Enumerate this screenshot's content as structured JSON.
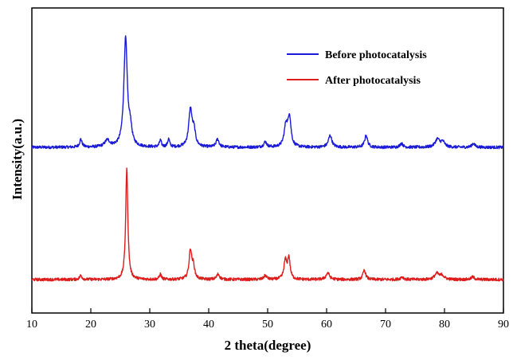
{
  "chart_data": {
    "type": "line",
    "xlabel": "2 theta(degree)",
    "ylabel": "Intensity(a.u.)",
    "xlim": [
      10,
      90
    ],
    "x_ticks": [
      10,
      20,
      30,
      40,
      50,
      60,
      70,
      80,
      90
    ],
    "y_ticks_shown": false,
    "grid": false,
    "legend_position": "top-right",
    "series": [
      {
        "name": "Before photocatalysis",
        "color": "#1a1ad6",
        "baseline": 0,
        "peaks": [
          {
            "x": 18.3,
            "h": 0.6,
            "w": 0.25
          },
          {
            "x": 22.8,
            "h": 0.5,
            "w": 0.5
          },
          {
            "x": 25.9,
            "h": 8.2,
            "w": 0.35
          },
          {
            "x": 26.7,
            "h": 1.2,
            "w": 0.3
          },
          {
            "x": 31.8,
            "h": 0.5,
            "w": 0.2
          },
          {
            "x": 33.2,
            "h": 0.6,
            "w": 0.2
          },
          {
            "x": 36.9,
            "h": 2.8,
            "w": 0.35
          },
          {
            "x": 37.5,
            "h": 1.1,
            "w": 0.3
          },
          {
            "x": 41.5,
            "h": 0.6,
            "w": 0.3
          },
          {
            "x": 49.6,
            "h": 0.4,
            "w": 0.3
          },
          {
            "x": 53.1,
            "h": 1.6,
            "w": 0.35
          },
          {
            "x": 53.7,
            "h": 2.2,
            "w": 0.3
          },
          {
            "x": 60.6,
            "h": 0.9,
            "w": 0.35
          },
          {
            "x": 66.7,
            "h": 0.9,
            "w": 0.3
          },
          {
            "x": 72.7,
            "h": 0.3,
            "w": 0.3
          },
          {
            "x": 78.8,
            "h": 0.6,
            "w": 0.45
          },
          {
            "x": 79.7,
            "h": 0.4,
            "w": 0.4
          },
          {
            "x": 84.9,
            "h": 0.3,
            "w": 0.3
          }
        ]
      },
      {
        "name": "After photocatalysis",
        "color": "#dd1c1c",
        "baseline": -10,
        "peaks": [
          {
            "x": 18.3,
            "h": 0.3,
            "w": 0.25
          },
          {
            "x": 26.1,
            "h": 8.4,
            "w": 0.22
          },
          {
            "x": 31.8,
            "h": 0.4,
            "w": 0.2
          },
          {
            "x": 36.9,
            "h": 2.2,
            "w": 0.28
          },
          {
            "x": 37.4,
            "h": 0.9,
            "w": 0.25
          },
          {
            "x": 41.6,
            "h": 0.4,
            "w": 0.3
          },
          {
            "x": 49.6,
            "h": 0.3,
            "w": 0.3
          },
          {
            "x": 53.0,
            "h": 1.4,
            "w": 0.28
          },
          {
            "x": 53.6,
            "h": 1.6,
            "w": 0.25
          },
          {
            "x": 60.2,
            "h": 0.5,
            "w": 0.35
          },
          {
            "x": 66.4,
            "h": 0.7,
            "w": 0.28
          },
          {
            "x": 72.8,
            "h": 0.2,
            "w": 0.3
          },
          {
            "x": 78.7,
            "h": 0.45,
            "w": 0.45
          },
          {
            "x": 79.6,
            "h": 0.3,
            "w": 0.4
          },
          {
            "x": 84.8,
            "h": 0.2,
            "w": 0.3
          }
        ]
      }
    ]
  }
}
